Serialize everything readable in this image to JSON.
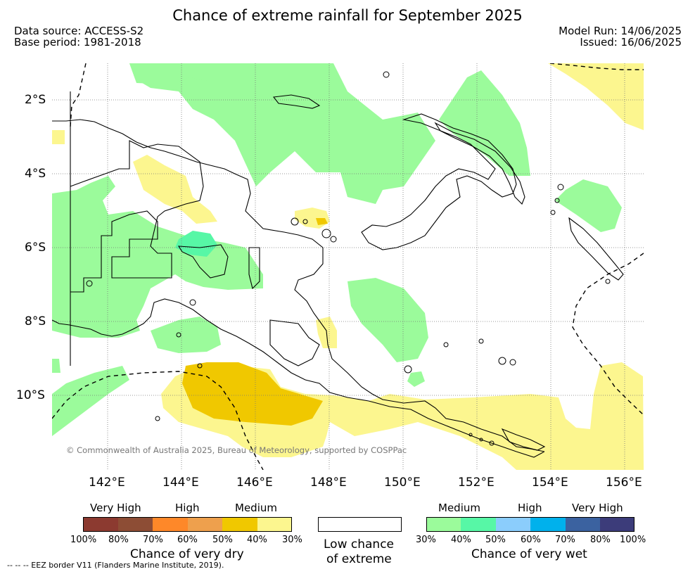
{
  "title": "Chance of extreme rainfall for September 2025",
  "info": {
    "data_source": "Data source: ACCESS-S2",
    "base_period": "Base period: 1981-2018",
    "model_run": "Model Run: 14/06/2025",
    "issued": "Issued: 16/06/2025"
  },
  "map": {
    "latitude_labels": [
      "2°S",
      "4°S",
      "6°S",
      "8°S",
      "10°S"
    ],
    "longitude_labels": [
      "142°E",
      "144°E",
      "146°E",
      "148°E",
      "150°E",
      "152°E",
      "154°E",
      "156°E"
    ],
    "copyright": "© Commonwealth of Australia 2025, Bureau of Meteorology, supported by COSPPac",
    "colors": {
      "wet_medium_30": "#9bfb9b",
      "wet_medium_40": "#57f7a6",
      "dry_medium_30": "#fcf68f",
      "dry_medium_40": "#f0c800",
      "land_outline": "#000000"
    }
  },
  "legend": {
    "dry": {
      "headers": [
        "Very High",
        "High",
        "Medium"
      ],
      "colors": [
        "#8c3a30",
        "#8d4d35",
        "#fe8829",
        "#eea04d",
        "#f0c800",
        "#fcf68f"
      ],
      "ticks": [
        "100%",
        "80%",
        "70%",
        "60%",
        "50%",
        "40%",
        "30%"
      ],
      "caption": "Chance of very dry"
    },
    "low": {
      "caption_line1": "Low chance",
      "caption_line2": "of extreme",
      "color": "#ffffff"
    },
    "wet": {
      "headers": [
        "Medium",
        "High",
        "Very High"
      ],
      "colors": [
        "#9bfb9b",
        "#57f7a6",
        "#8bcdfc",
        "#00b1ec",
        "#3b62a0",
        "#3c3c7a"
      ],
      "ticks": [
        "30%",
        "40%",
        "50%",
        "60%",
        "70%",
        "80%",
        "100%"
      ],
      "caption": "Chance of very wet"
    }
  },
  "footer": {
    "eez_note": "--  --  -- EEZ border V11 (Flanders Marine Institute, 2019)."
  }
}
